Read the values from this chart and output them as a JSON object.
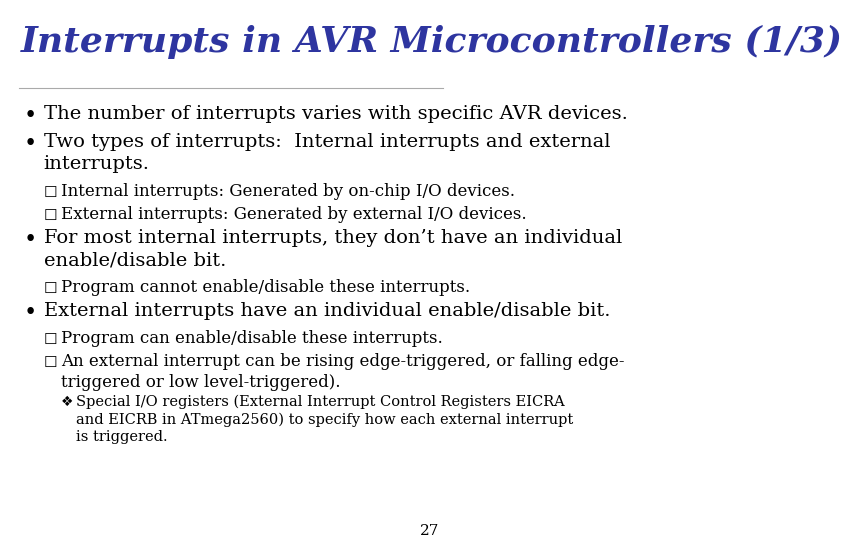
{
  "title": "Interrupts in AVR Microcontrollers (1/3)",
  "title_color": "#2E35A0",
  "title_fontsize": 26,
  "background_color": "#FFFFFF",
  "text_color": "#000000",
  "body_fontsize": 14,
  "sub_fontsize": 12,
  "subsub_fontsize": 10.5,
  "page_number": "27",
  "items": [
    {
      "level": 0,
      "text": "The number of interrupts varies with specific AVR devices.",
      "lines": 1
    },
    {
      "level": 0,
      "text": "Two types of interrupts:  Internal interrupts and external\ninterrupts.",
      "lines": 2
    },
    {
      "level": 1,
      "text": "Internal interrupts: Generated by on-chip I/O devices.",
      "lines": 1
    },
    {
      "level": 1,
      "text": "External interrupts: Generated by external I/O devices.",
      "lines": 1
    },
    {
      "level": 0,
      "text": "For most internal interrupts, they don’t have an individual\nenable/disable bit.",
      "lines": 2
    },
    {
      "level": 1,
      "text": "Program cannot enable/disable these interrupts.",
      "lines": 1
    },
    {
      "level": 0,
      "text": "External interrupts have an individual enable/disable bit.",
      "lines": 1
    },
    {
      "level": 1,
      "text": "Program can enable/disable these interrupts.",
      "lines": 1
    },
    {
      "level": 1,
      "text": "An external interrupt can be rising edge-triggered, or falling edge-\ntriggered or low level-triggered).",
      "lines": 2
    },
    {
      "level": 2,
      "text": "Special I/O registers (External Interrupt Control Registers EICRA\nand EICRB in ATmega2560) to specify how each external interrupt\nis triggered.",
      "lines": 3
    }
  ]
}
